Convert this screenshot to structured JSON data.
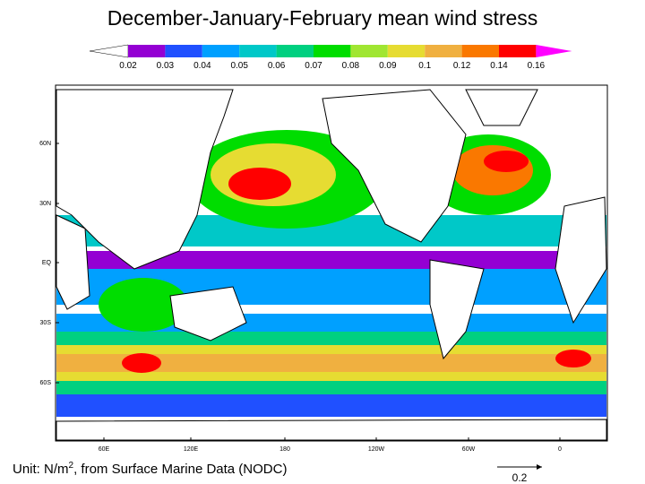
{
  "title": "December-January-February mean wind stress",
  "colorbar": {
    "labels": [
      "0.02",
      "0.03",
      "0.04",
      "0.05",
      "0.06",
      "0.07",
      "0.08",
      "0.09",
      "0.1",
      "0.12",
      "0.14",
      "0.16"
    ]
  },
  "map": {
    "lat_labels": [
      "60N",
      "30N",
      "EQ",
      "30S",
      "60S"
    ],
    "lon_labels": [
      "60E",
      "120E",
      "180",
      "120W",
      "60W",
      "0"
    ]
  },
  "reference_vector": {
    "label": "0.2"
  },
  "unit_note": {
    "prefix": "Unit: N/m",
    "superscript": "2",
    "suffix": ", from Surface Marine Data (NODC)"
  }
}
